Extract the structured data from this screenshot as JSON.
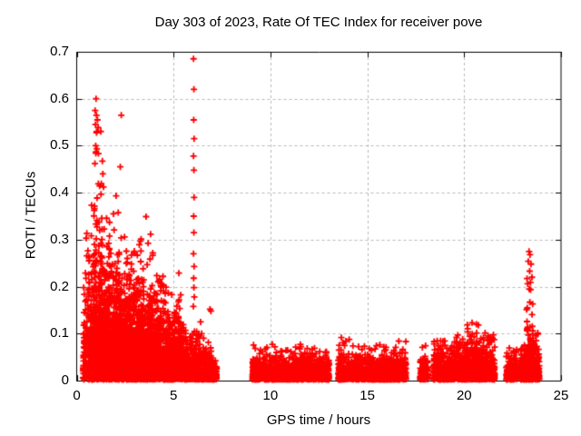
{
  "chart_data": {
    "type": "scatter",
    "title": "Day 303 of 2023, Rate Of TEC Index for receiver pove",
    "xlabel": "GPS time / hours",
    "ylabel": "ROTI / TECUs",
    "xlim": [
      0,
      25
    ],
    "ylim": [
      0,
      0.7
    ],
    "xticks": [
      0,
      5,
      10,
      15,
      20,
      25
    ],
    "yticks": [
      0,
      0.1,
      0.2,
      0.3,
      0.4,
      0.5,
      0.6,
      0.7
    ],
    "grid": true,
    "grid_style": "dashed",
    "legend": "none",
    "marker": "plus",
    "marker_color": "#ff0000",
    "grid_color": "#b9b9b9",
    "frame_color": "#000000",
    "background_color": "#ffffff",
    "seed": 303,
    "clusters": [
      {
        "x0": 0.3,
        "x1": 0.55,
        "n": 90,
        "scale": 0.07,
        "ymax": 0.34
      },
      {
        "x0": 0.55,
        "x1": 0.95,
        "n": 260,
        "scale": 0.09,
        "ymax": 0.42
      },
      {
        "x0": 0.95,
        "x1": 1.35,
        "n": 330,
        "scale": 0.11,
        "ymax": 0.61
      },
      {
        "x0": 1.35,
        "x1": 2.25,
        "n": 850,
        "scale": 0.075,
        "ymax": 0.46
      },
      {
        "x0": 2.25,
        "x1": 3.15,
        "n": 950,
        "scale": 0.06,
        "ymax": 0.4
      },
      {
        "x0": 3.15,
        "x1": 3.95,
        "n": 850,
        "scale": 0.055,
        "ymax": 0.41
      },
      {
        "x0": 3.95,
        "x1": 4.65,
        "n": 650,
        "scale": 0.05,
        "ymax": 0.31
      },
      {
        "x0": 4.65,
        "x1": 5.45,
        "n": 550,
        "scale": 0.042,
        "ymax": 0.29
      },
      {
        "x0": 5.45,
        "x1": 6.25,
        "n": 380,
        "scale": 0.028,
        "ymax": 0.13
      },
      {
        "x0": 6.25,
        "x1": 7.25,
        "n": 330,
        "scale": 0.024,
        "ymax": 0.15,
        "ymax_end": 0.03
      },
      {
        "x0": 9.05,
        "x1": 13.05,
        "n": 1500,
        "scale": 0.015,
        "ymax": 0.08
      },
      {
        "x0": 13.48,
        "x1": 17.02,
        "n": 1350,
        "scale": 0.015,
        "ymax": 0.09
      },
      {
        "x0": 17.7,
        "x1": 18.15,
        "n": 140,
        "scale": 0.018,
        "ymax": 0.075
      },
      {
        "x0": 18.4,
        "x1": 19.3,
        "n": 360,
        "scale": 0.02,
        "ymax": 0.09
      },
      {
        "x0": 19.3,
        "x1": 20.1,
        "n": 340,
        "scale": 0.024,
        "ymax": 0.11
      },
      {
        "x0": 20.1,
        "x1": 20.7,
        "n": 280,
        "scale": 0.028,
        "ymax": 0.14
      },
      {
        "x0": 20.7,
        "x1": 21.6,
        "n": 350,
        "scale": 0.024,
        "ymax": 0.12
      },
      {
        "x0": 22.15,
        "x1": 22.75,
        "n": 190,
        "scale": 0.017,
        "ymax": 0.068
      },
      {
        "x0": 22.9,
        "x1": 23.9,
        "n": 380,
        "scale": 0.024,
        "ymax": 0.1
      },
      {
        "x0": 23.2,
        "x1": 23.6,
        "n": 90,
        "scale": 0.07,
        "ymax": 0.26
      }
    ],
    "outlier_points": [
      [
        1.0,
        0.6
      ],
      [
        0.95,
        0.575
      ],
      [
        1.02,
        0.565
      ],
      [
        1.07,
        0.555
      ],
      [
        0.97,
        0.545
      ],
      [
        1.03,
        0.53
      ],
      [
        2.3,
        0.565
      ],
      [
        0.98,
        0.5
      ],
      [
        1.0,
        0.487
      ],
      [
        0.94,
        0.462
      ],
      [
        1.35,
        0.44
      ],
      [
        2.25,
        0.455
      ],
      [
        6.03,
        0.685
      ],
      [
        6.05,
        0.62
      ],
      [
        6.04,
        0.555
      ],
      [
        6.06,
        0.515
      ],
      [
        6.03,
        0.478
      ],
      [
        6.05,
        0.448
      ],
      [
        6.06,
        0.39
      ],
      [
        6.04,
        0.35
      ],
      [
        6.05,
        0.315
      ],
      [
        6.03,
        0.27
      ],
      [
        6.06,
        0.243
      ],
      [
        6.04,
        0.218
      ],
      [
        6.05,
        0.198
      ],
      [
        6.07,
        0.178
      ],
      [
        6.02,
        0.158
      ],
      [
        6.88,
        0.152
      ],
      [
        6.93,
        0.148
      ],
      [
        6.45,
        0.1
      ],
      [
        6.55,
        0.09
      ],
      [
        23.35,
        0.275
      ],
      [
        23.4,
        0.268
      ],
      [
        23.31,
        0.254
      ],
      [
        23.45,
        0.248
      ],
      [
        23.38,
        0.233
      ],
      [
        23.5,
        0.22
      ],
      [
        23.42,
        0.209
      ],
      [
        23.36,
        0.195
      ]
    ]
  }
}
